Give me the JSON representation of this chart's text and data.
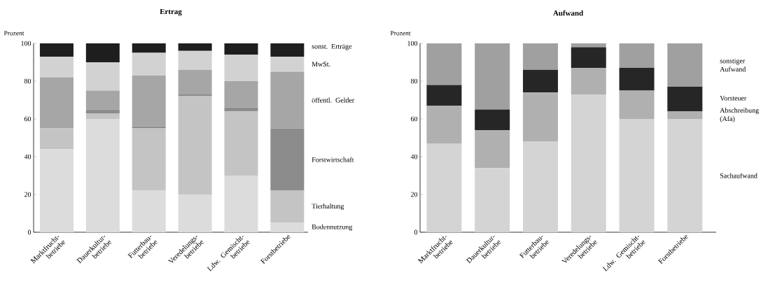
{
  "chart_data": [
    {
      "type": "bar",
      "title": "Ertrag",
      "ylabel": "Prozent",
      "stacked": true,
      "legend": "right",
      "ylim": [
        0,
        100
      ],
      "yticks": [
        0,
        20,
        40,
        60,
        80,
        100
      ],
      "categories": [
        "Marktfrucht-betriebe",
        "Dauerkultur-betriebe",
        "Futterbau-betriebe",
        "Veredelungs-betriebe",
        "Ldw. Gemischt-betriebe",
        "Forstbetriebe"
      ],
      "series": [
        {
          "name": "Bodennutzung",
          "color": "#dcdcdc",
          "values": [
            44,
            60,
            22,
            20,
            30,
            5
          ]
        },
        {
          "name": "Tierhaltung",
          "color": "#c4c4c4",
          "values": [
            11,
            3,
            33,
            52,
            34,
            17
          ]
        },
        {
          "name": "Forstwirtschaft",
          "color": "#8c8c8c",
          "values": [
            0,
            2,
            1,
            1,
            2,
            33
          ]
        },
        {
          "name": "öffentl. Gelder",
          "color": "#a6a6a6",
          "values": [
            27,
            10,
            27,
            13,
            14,
            30
          ]
        },
        {
          "name": "MwSt.",
          "color": "#d2d2d2",
          "values": [
            11,
            15,
            12,
            10,
            14,
            8
          ]
        },
        {
          "name": "sonst. Erträge",
          "color": "#1e1e1e",
          "values": [
            7,
            10,
            5,
            4,
            6,
            7
          ]
        }
      ]
    },
    {
      "type": "bar",
      "title": "Aufwand",
      "ylabel": "Prozent",
      "stacked": true,
      "legend": "right",
      "ylim": [
        0,
        100
      ],
      "yticks": [
        0,
        20,
        40,
        60,
        80,
        100
      ],
      "categories": [
        "Marktfrucht-betriebe",
        "Dauerkultur-betriebe",
        "Futterbau-betriebe",
        "Veredelungs-betriebe",
        "Ldw. Gemischt-betriebe",
        "Forstbetriebe"
      ],
      "series": [
        {
          "name": "Sachaufwand",
          "color": "#d4d4d4",
          "values": [
            47,
            34,
            48,
            73,
            60,
            60
          ]
        },
        {
          "name": "Abschreibung (Afa)",
          "color": "#b0b0b0",
          "values": [
            20,
            20,
            26,
            14,
            15,
            4
          ]
        },
        {
          "name": "Vorsteuer",
          "color": "#262626",
          "values": [
            11,
            11,
            12,
            11,
            12,
            13
          ]
        },
        {
          "name": "sonstiger Aufwand",
          "color": "#a0a0a0",
          "values": [
            22,
            35,
            14,
            2,
            13,
            23
          ]
        }
      ]
    }
  ]
}
